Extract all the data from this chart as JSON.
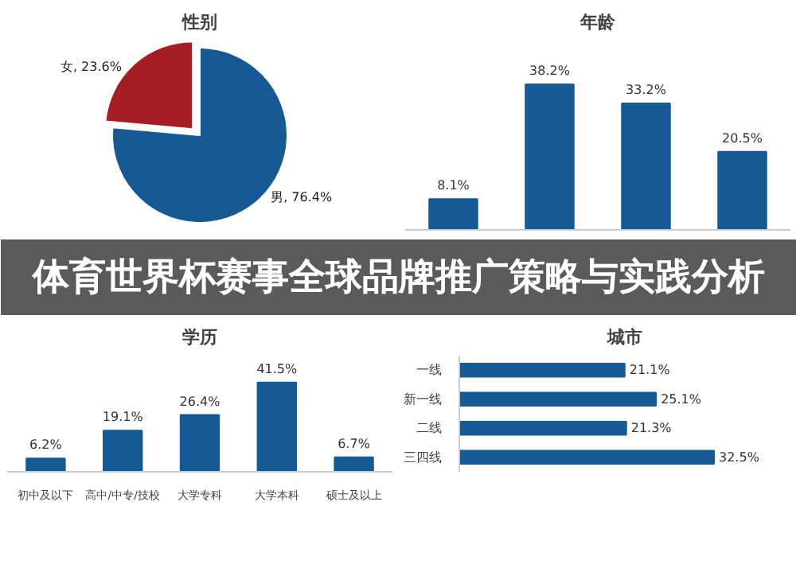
{
  "chart_data": [
    {
      "type": "pie",
      "title": "性别",
      "categories": [
        "男",
        "女"
      ],
      "values": [
        76.4,
        23.6
      ],
      "colors": [
        "#155a94",
        "#a51c24"
      ],
      "value_labels": [
        "76.4%",
        "23.6%"
      ]
    },
    {
      "type": "bar",
      "title": "年龄",
      "categories": [
        null,
        null,
        null,
        null
      ],
      "values": [
        8.1,
        38.2,
        33.2,
        20.5
      ],
      "color": "#155a94",
      "value_labels": [
        "8.1%",
        "38.2%",
        "33.2%",
        "20.5%"
      ]
    },
    {
      "type": "other",
      "title": "体育世界杯赛事全球品牌推广策略与实践分析"
    },
    {
      "type": "bar",
      "title": "学历",
      "categories": [
        "初中及以下",
        "高中/中专/技校",
        "大学专科",
        "大学本科",
        "硕士及以上"
      ],
      "values": [
        6.2,
        19.1,
        26.4,
        41.5,
        6.7
      ],
      "color": "#155a94",
      "value_labels": [
        "6.2%",
        "19.1%",
        "26.4%",
        "41.5%",
        "6.7%"
      ]
    },
    {
      "type": "bar",
      "orientation": "horizontal",
      "title": "城市",
      "categories": [
        "一线",
        "新一线",
        "二线",
        "三四线"
      ],
      "values": [
        21.1,
        25.1,
        21.3,
        32.5
      ],
      "color": "#155a94",
      "value_labels": [
        "21.1%",
        "25.1%",
        "21.3%",
        "32.5%"
      ]
    }
  ]
}
